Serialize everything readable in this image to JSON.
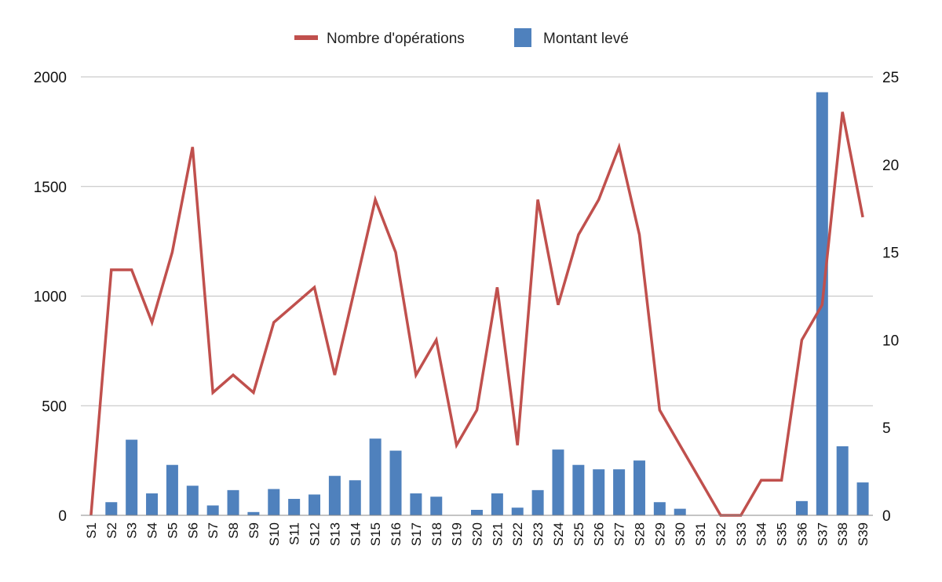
{
  "chart_data": {
    "type": "bar",
    "categories": [
      "S1",
      "S2",
      "S3",
      "S4",
      "S5",
      "S6",
      "S7",
      "S8",
      "S9",
      "S10",
      "S11",
      "S12",
      "S13",
      "S14",
      "S15",
      "S16",
      "S17",
      "S18",
      "S19",
      "S20",
      "S21",
      "S22",
      "S23",
      "S24",
      "S25",
      "S26",
      "S27",
      "S28",
      "S29",
      "S30",
      "S31",
      "S32",
      "S33",
      "S34",
      "S35",
      "S36",
      "S37",
      "S38",
      "S39"
    ],
    "series": [
      {
        "name": "Montant levé",
        "type": "bar",
        "axis": "left",
        "color": "#4F81BD",
        "values": [
          0,
          60,
          345,
          100,
          230,
          135,
          45,
          115,
          15,
          120,
          75,
          95,
          180,
          160,
          350,
          295,
          100,
          85,
          0,
          25,
          100,
          35,
          115,
          300,
          230,
          210,
          210,
          250,
          60,
          30,
          0,
          0,
          0,
          0,
          0,
          65,
          1930,
          315,
          150
        ]
      },
      {
        "name": "Nombre d'opérations",
        "type": "line",
        "axis": "right",
        "color": "#C0504D",
        "values": [
          0,
          14,
          14,
          11,
          15,
          21,
          7,
          8,
          7,
          11,
          12,
          13,
          8,
          13,
          18,
          15,
          8,
          10,
          4,
          6,
          13,
          4,
          18,
          12,
          16,
          18,
          21,
          16,
          6,
          4,
          2,
          0,
          0,
          2,
          2,
          10,
          12,
          23,
          17
        ]
      }
    ],
    "title": "",
    "xlabel": "",
    "ylabel": "",
    "ylim": [
      0,
      2000
    ],
    "y2lim": [
      0,
      25
    ],
    "yticks": [
      "0",
      "500",
      "1000",
      "1500",
      "2000"
    ],
    "y2ticks": [
      "0",
      "5",
      "10",
      "15",
      "20",
      "25"
    ],
    "grid": true,
    "legend_position": "top-center"
  }
}
